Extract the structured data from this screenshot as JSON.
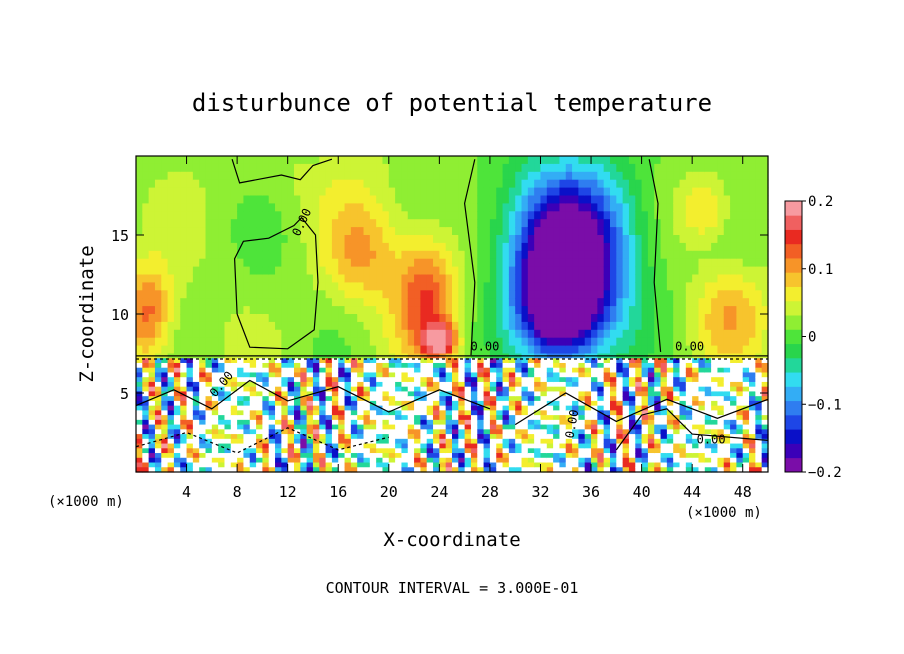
{
  "chart_data": {
    "type": "heatmap",
    "title": "disturbunce of potential temperature",
    "xlabel": "X-coordinate",
    "ylabel": "Z-coordinate",
    "x_unit": "(×1000 m)",
    "x_unit_right": "(×1000 m)",
    "xlim": [
      0,
      50
    ],
    "ylim": [
      0,
      20
    ],
    "x_ticks": [
      4,
      8,
      12,
      16,
      20,
      24,
      28,
      32,
      36,
      40,
      44,
      48
    ],
    "y_ticks": [
      5,
      10,
      15
    ],
    "colorbar": {
      "range": [
        -0.2,
        0.2
      ],
      "ticks": [
        0.2,
        0.1,
        0,
        -0.1,
        -0.2
      ],
      "tick_labels": [
        "0.2",
        "0.1",
        "0",
        "−0.1",
        "−0.2"
      ],
      "colors": [
        "#7a0da8",
        "#3b00b8",
        "#0a10c8",
        "#1e46e6",
        "#2f7df0",
        "#33adf5",
        "#32dcf0",
        "#22d79a",
        "#29d54c",
        "#4ee43a",
        "#8fee33",
        "#cdf435",
        "#f3ee2e",
        "#f7c42d",
        "#f79428",
        "#f25f25",
        "#e92a21",
        "#f06060",
        "#f79aa0"
      ]
    },
    "field_blobs": [
      {
        "x": 34.5,
        "z": 12.5,
        "rx": 4.8,
        "rz": 6.0,
        "v": -0.17
      },
      {
        "x": 33.5,
        "z": 11.0,
        "rx": 3.0,
        "rz": 3.5,
        "v": -0.21
      },
      {
        "x": 34.0,
        "z": 16.0,
        "rx": 6.0,
        "rz": 4.5,
        "v": -0.08
      },
      {
        "x": 23.0,
        "z": 11.0,
        "rx": 2.5,
        "rz": 4.0,
        "v": 0.11
      },
      {
        "x": 24.0,
        "z": 8.3,
        "rx": 1.2,
        "rz": 1.0,
        "v": 0.15
      },
      {
        "x": 18.0,
        "z": 14.0,
        "rx": 3.0,
        "rz": 3.5,
        "v": 0.07
      },
      {
        "x": 1.0,
        "z": 10.0,
        "rx": 2.0,
        "rz": 3.0,
        "v": 0.1
      },
      {
        "x": 47.0,
        "z": 10.0,
        "rx": 3.0,
        "rz": 3.0,
        "v": 0.06
      },
      {
        "x": 45.0,
        "z": 16.5,
        "rx": 2.0,
        "rz": 2.0,
        "v": 0.06
      },
      {
        "x": 11.0,
        "z": 13.0,
        "rx": 3.0,
        "rz": 5.0,
        "v": -0.01
      },
      {
        "x": 14.0,
        "z": 18.5,
        "rx": 6.0,
        "rz": 2.0,
        "v": 0.01
      }
    ],
    "contour_labels": [
      "0.00",
      "0.00",
      "0.00",
      "0.00",
      "0.00",
      "0.00"
    ],
    "footer": "CONTOUR INTERVAL = 3.000E-01"
  }
}
